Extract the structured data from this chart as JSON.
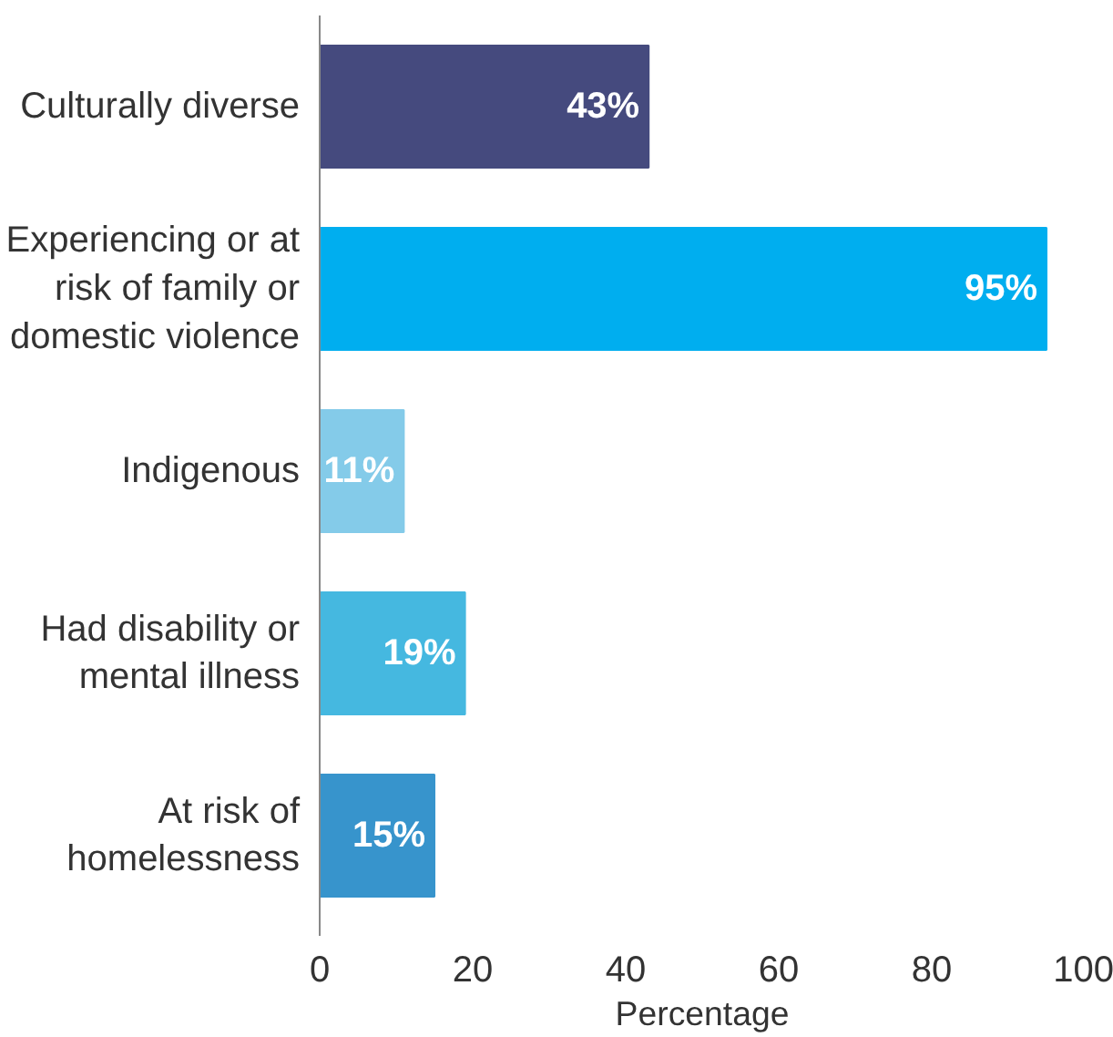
{
  "chart_data": {
    "type": "bar",
    "orientation": "horizontal",
    "xlabel": "Percentage",
    "categories": [
      "Culturally diverse",
      "Experiencing or at risk of family or domestic violence",
      "Indigenous",
      "Had disability or mental illness",
      "At risk of homelessness"
    ],
    "values": [
      43,
      95,
      11,
      19,
      15
    ],
    "colors": [
      "#454a7e",
      "#00aeef",
      "#84cbe9",
      "#45b8e0",
      "#3794cc"
    ],
    "value_labels": [
      "43%",
      "95%",
      "11%",
      "19%",
      "15%"
    ],
    "xlim": [
      0,
      100
    ],
    "xticks": [
      0,
      20,
      40,
      60,
      80,
      100
    ],
    "grid": false
  }
}
